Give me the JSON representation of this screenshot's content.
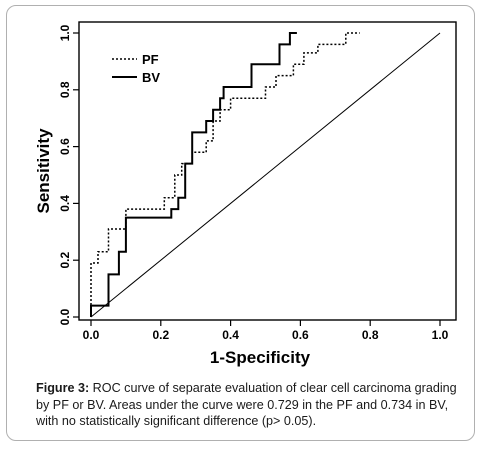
{
  "chart_data": {
    "type": "line",
    "xlabel": "1-Specificity",
    "ylabel": "Sensitivity",
    "xlim": [
      0,
      1.0
    ],
    "ylim": [
      0,
      1.0
    ],
    "xticks": [
      "0.0",
      "0.2",
      "0.4",
      "0.6",
      "0.8",
      "1.0"
    ],
    "yticks": [
      "0.0",
      "0.2",
      "0.4",
      "0.6",
      "0.8",
      "1.0"
    ],
    "legend_position": "top-left",
    "reference_line": {
      "x": [
        0,
        1
      ],
      "y": [
        0,
        1
      ]
    },
    "series": [
      {
        "name": "PF",
        "style": "dotted",
        "x": [
          0,
          0,
          0.02,
          0.02,
          0.05,
          0.05,
          0.1,
          0.1,
          0.21,
          0.21,
          0.24,
          0.24,
          0.26,
          0.26,
          0.29,
          0.29,
          0.33,
          0.33,
          0.35,
          0.35,
          0.37,
          0.37,
          0.4,
          0.4,
          0.5,
          0.5,
          0.53,
          0.53,
          0.58,
          0.58,
          0.61,
          0.61,
          0.65,
          0.65,
          0.73,
          0.73,
          0.77,
          0.77
        ],
        "y": [
          0,
          0.19,
          0.19,
          0.23,
          0.23,
          0.31,
          0.31,
          0.38,
          0.38,
          0.42,
          0.42,
          0.5,
          0.5,
          0.54,
          0.54,
          0.58,
          0.58,
          0.62,
          0.62,
          0.69,
          0.69,
          0.73,
          0.73,
          0.77,
          0.77,
          0.81,
          0.81,
          0.85,
          0.85,
          0.89,
          0.89,
          0.93,
          0.93,
          0.96,
          0.96,
          1.0,
          1.0,
          1.0
        ]
      },
      {
        "name": "BV",
        "style": "solid",
        "x": [
          0,
          0,
          0.05,
          0.05,
          0.08,
          0.08,
          0.1,
          0.1,
          0.23,
          0.23,
          0.25,
          0.25,
          0.27,
          0.27,
          0.29,
          0.29,
          0.33,
          0.33,
          0.35,
          0.35,
          0.37,
          0.37,
          0.38,
          0.38,
          0.46,
          0.46,
          0.54,
          0.54,
          0.57,
          0.57,
          0.59
        ],
        "y": [
          0,
          0.04,
          0.04,
          0.15,
          0.15,
          0.23,
          0.23,
          0.35,
          0.35,
          0.38,
          0.38,
          0.42,
          0.42,
          0.54,
          0.54,
          0.65,
          0.65,
          0.69,
          0.69,
          0.73,
          0.73,
          0.77,
          0.77,
          0.81,
          0.81,
          0.89,
          0.89,
          0.96,
          0.96,
          1.0,
          1.0
        ]
      }
    ]
  },
  "caption": {
    "label": "Figure 3:",
    "text": " ROC curve of separate evaluation of clear cell carcinoma grading by PF or BV. Areas under the curve were 0.729 in the PF and 0.734 in BV, with no statistically significant difference (p> 0.05)."
  }
}
